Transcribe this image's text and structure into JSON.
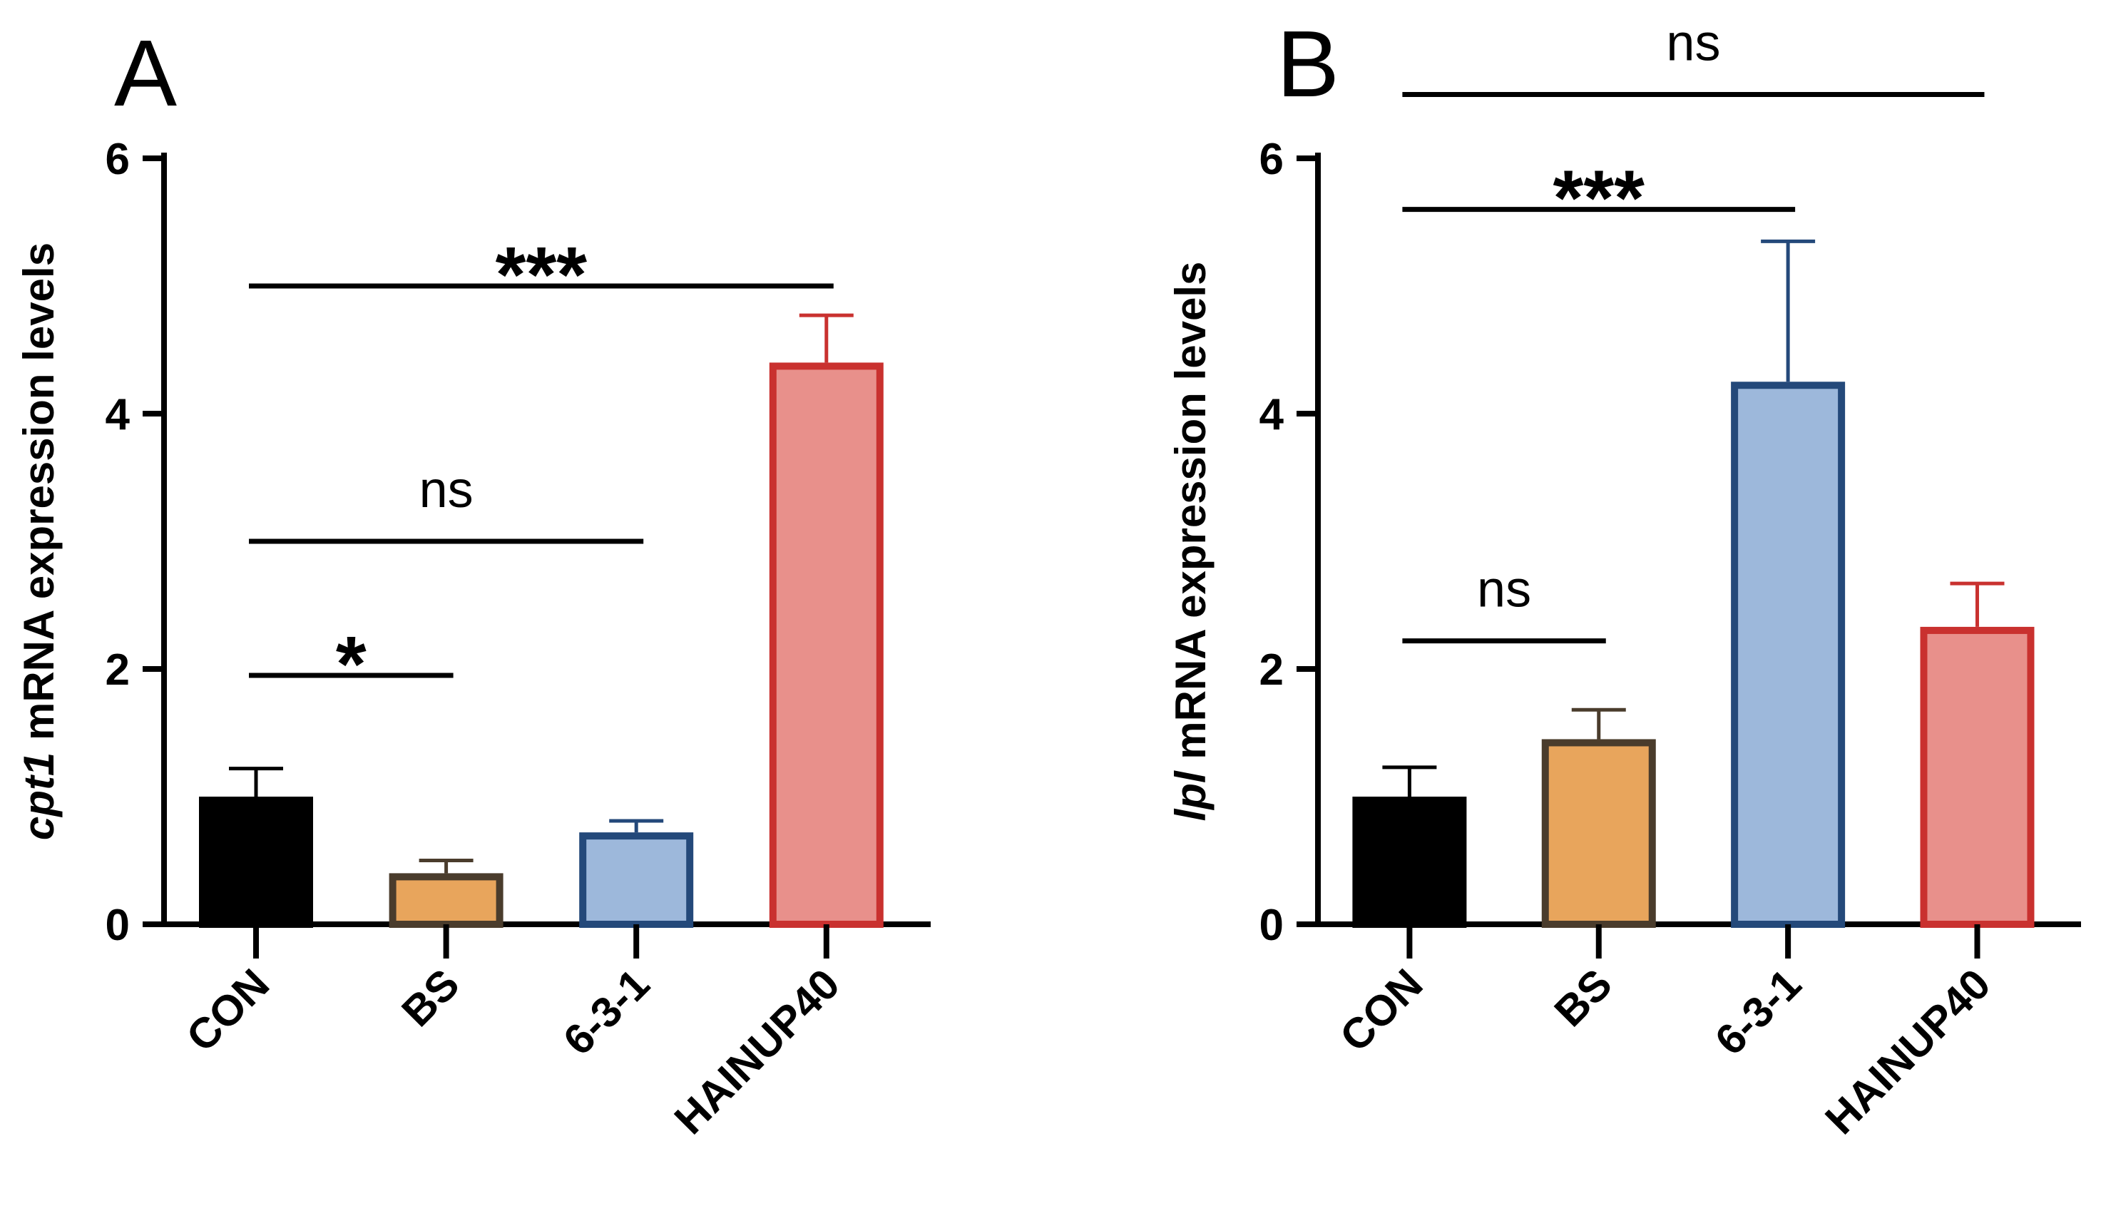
{
  "chart_data": [
    {
      "type": "bar",
      "panel": "A",
      "categories": [
        "CON",
        "BS",
        "6-3-1",
        "HAINUP40"
      ],
      "values": [
        1.0,
        0.4,
        0.72,
        4.4
      ],
      "errors": [
        0.22,
        0.1,
        0.09,
        0.37
      ],
      "ylabel_italic": "cpt1",
      "ylabel": "mRNA expression levels",
      "ylim": [
        0,
        6
      ],
      "yticks": [
        "0",
        "2",
        "4",
        "6"
      ],
      "bar_fill": [
        "#000000",
        "#e8a55c",
        "#9db8db",
        "#e8908b"
      ],
      "bar_edge": [
        "#000000",
        "#4a3c2c",
        "#24497a",
        "#c9312f"
      ],
      "comparisons": [
        {
          "from": 0,
          "to": 1,
          "label": "*",
          "y": 1.95
        },
        {
          "from": 0,
          "to": 2,
          "label": "ns",
          "y": 3.0
        },
        {
          "from": 0,
          "to": 3,
          "label": "***",
          "y": 5.0
        }
      ]
    },
    {
      "type": "bar",
      "panel": "B",
      "categories": [
        "CON",
        "BS",
        "6-3-1",
        "HAINUP40"
      ],
      "values": [
        1.0,
        1.45,
        4.25,
        2.33
      ],
      "errors": [
        0.23,
        0.23,
        1.1,
        0.34
      ],
      "ylabel_italic": "lpl",
      "ylabel": "mRNA expression levels",
      "ylim": [
        0,
        6
      ],
      "yticks": [
        "0",
        "2",
        "4",
        "6"
      ],
      "bar_fill": [
        "#000000",
        "#e8a55c",
        "#9db8db",
        "#e8908b"
      ],
      "bar_edge": [
        "#000000",
        "#4a3c2c",
        "#24497a",
        "#c9312f"
      ],
      "comparisons": [
        {
          "from": 0,
          "to": 1,
          "label": "ns",
          "y": 2.22
        },
        {
          "from": 0,
          "to": 2,
          "label": "***",
          "y": 5.6
        },
        {
          "from": 0,
          "to": 3,
          "label": "ns",
          "y": 6.5
        }
      ]
    }
  ]
}
